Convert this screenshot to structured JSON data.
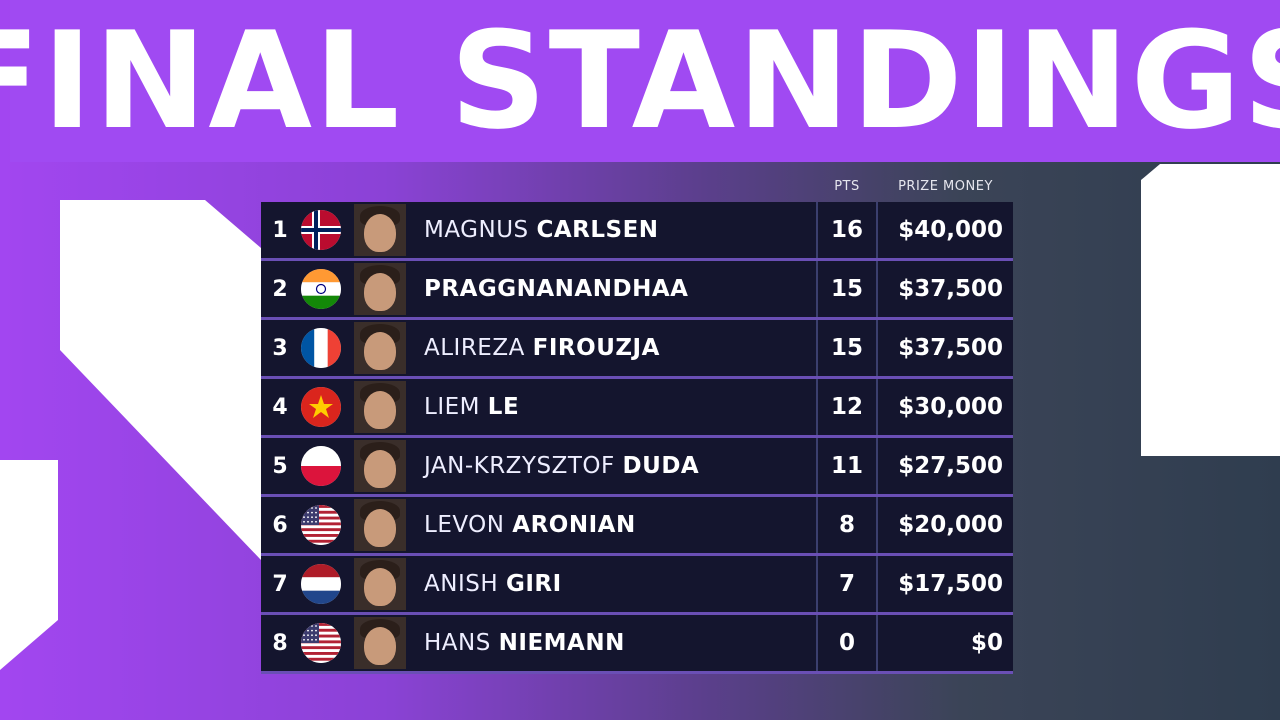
{
  "banner": {
    "title": "FINAL STANDINGS"
  },
  "headers": {
    "pts": "PTS",
    "prize": "PRIZE MONEY"
  },
  "standings": [
    {
      "rank": "1",
      "first": "MAGNUS",
      "last": "CARLSEN",
      "pts": "16",
      "prize": "$40,000",
      "flag": "norway-flag-icon"
    },
    {
      "rank": "2",
      "first": "",
      "last": "PRAGGNANANDHAA",
      "pts": "15",
      "prize": "$37,500",
      "flag": "india-flag-icon"
    },
    {
      "rank": "3",
      "first": "ALIREZA",
      "last": "FIROUZJA",
      "pts": "15",
      "prize": "$37,500",
      "flag": "france-flag-icon"
    },
    {
      "rank": "4",
      "first": "LIEM",
      "last": "LE",
      "pts": "12",
      "prize": "$30,000",
      "flag": "vietnam-flag-icon"
    },
    {
      "rank": "5",
      "first": "JAN-KRZYSZTOF",
      "last": "DUDA",
      "pts": "11",
      "prize": "$27,500",
      "flag": "poland-flag-icon"
    },
    {
      "rank": "6",
      "first": "LEVON",
      "last": "ARONIAN",
      "pts": "8",
      "prize": "$20,000",
      "flag": "usa-flag-icon"
    },
    {
      "rank": "7",
      "first": "ANISH",
      "last": "GIRI",
      "pts": "7",
      "prize": "$17,500",
      "flag": "netherlands-flag-icon"
    },
    {
      "rank": "8",
      "first": "HANS",
      "last": "NIEMANN",
      "pts": "0",
      "prize": "$0",
      "flag": "usa-flag-icon"
    }
  ],
  "colors": {
    "banner": "#a04af2",
    "row": "#14152e",
    "divider": "#6a4fb5"
  }
}
